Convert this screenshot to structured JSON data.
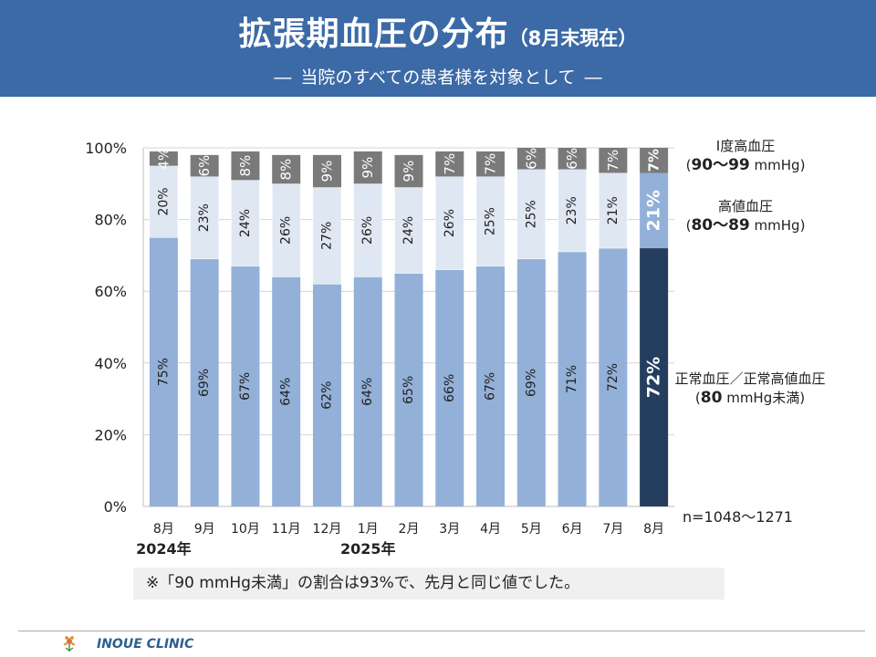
{
  "header": {
    "title": "拡張期血圧の分布",
    "title_sub": "（8月末現在）",
    "subtitle_dash": "―",
    "subtitle": "当院のすべての患者様を対象として"
  },
  "legend_labels": {
    "grade1": {
      "name": "Ⅰ度高血圧",
      "range_bold": "90～99",
      "unit": " mmHg"
    },
    "high": {
      "name": "高値血圧",
      "range_bold": "80～89",
      "unit": " mmHg"
    },
    "normal": {
      "name": "正常血圧／正常高値血圧",
      "range_bold": "80",
      "unit": " mmHg未満"
    }
  },
  "sample_size": "n=1048～1271",
  "note": "※「90 mmHg未満」の割合は93%で、先月と同じ値でした。",
  "footer": {
    "clinic": "INOUE CLINIC"
  },
  "colors": {
    "header_bg": "#3b6aa6",
    "normal": "#93b0d8",
    "high": "#dfe7f3",
    "grade1": "#7a7a7a",
    "normal_current": "#253e5f",
    "high_current": "#93b0d8",
    "grade1_current": "#7a7a7a"
  },
  "chart_data": {
    "type": "bar",
    "stacked": true,
    "categories": [
      "8月",
      "9月",
      "10月",
      "11月",
      "12月",
      "1月",
      "2月",
      "3月",
      "4月",
      "5月",
      "6月",
      "7月",
      "8月"
    ],
    "year_labels": [
      {
        "index": 0,
        "label": "2024年"
      },
      {
        "index": 5,
        "label": "2025年"
      }
    ],
    "series": [
      {
        "key": "normal",
        "values": [
          75,
          69,
          67,
          64,
          62,
          64,
          65,
          66,
          67,
          69,
          71,
          72,
          72
        ]
      },
      {
        "key": "high",
        "values": [
          20,
          23,
          24,
          26,
          27,
          26,
          24,
          26,
          25,
          25,
          23,
          21,
          21
        ]
      },
      {
        "key": "grade1",
        "values": [
          4,
          6,
          8,
          8,
          9,
          9,
          9,
          7,
          7,
          6,
          6,
          7,
          7
        ]
      }
    ],
    "ylim": [
      0,
      100
    ],
    "yticks": [
      "0%",
      "20%",
      "40%",
      "60%",
      "80%",
      "100%"
    ],
    "highlight_index": 12,
    "grid": true
  }
}
